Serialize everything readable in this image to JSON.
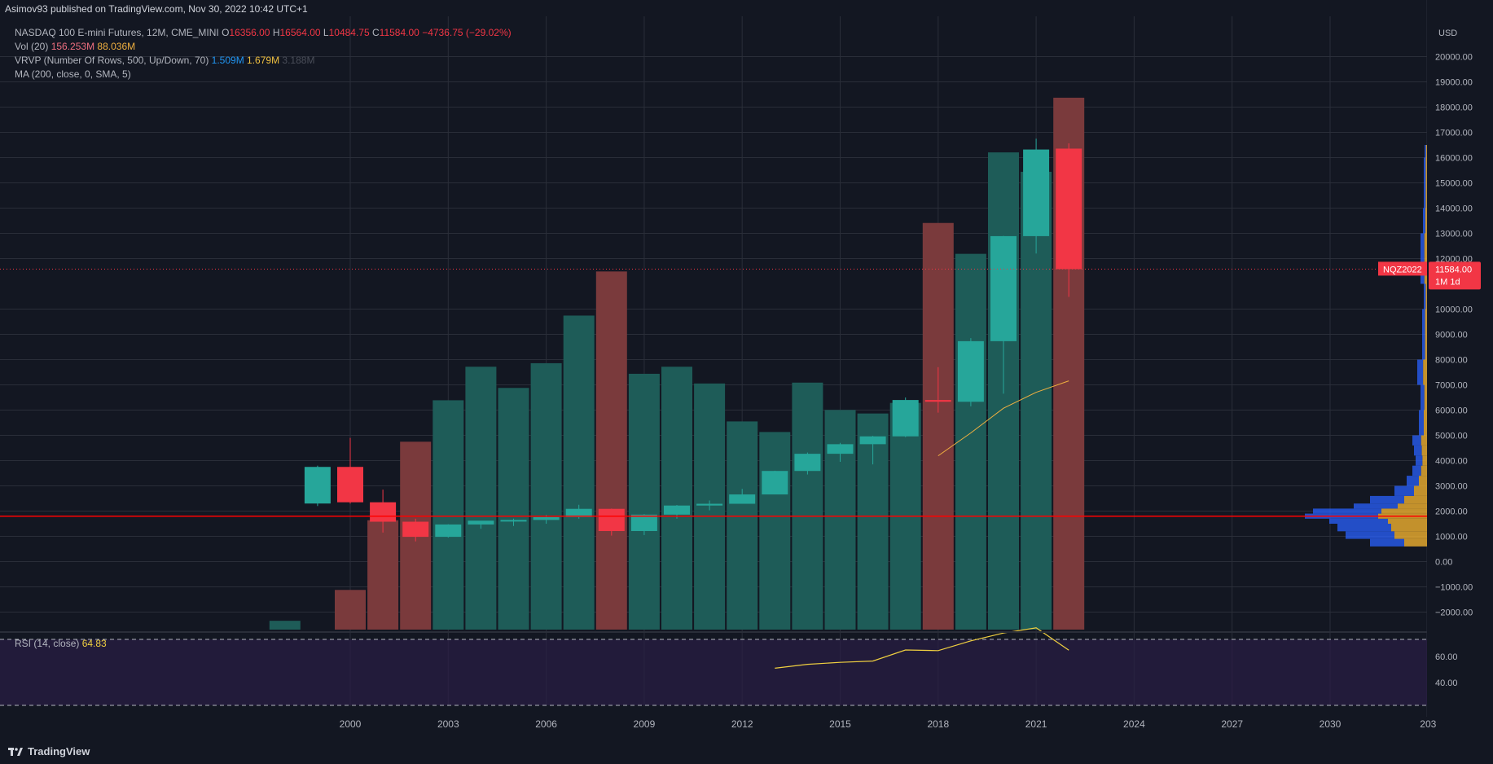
{
  "header": "Asimov93 published on TradingView.com, Nov 30, 2022 10:42 UTC+1",
  "legend": {
    "symbol": "NASDAQ 100 E-mini Futures, 12M, CME_MINI",
    "o_label": "O",
    "o": "16356.00",
    "h_label": "H",
    "h": "16564.00",
    "l_label": "L",
    "l": "10484.75",
    "c_label": "C",
    "c": "11584.00",
    "change": "−4736.75 (−29.02%)",
    "vol_label": "Vol (20)",
    "vol1": "156.253M",
    "vol2": "88.036M",
    "vrvp_label": "VRVP (Number Of Rows, 500, Up/Down, 70)",
    "vrvp1": "1.509M",
    "vrvp2": "1.679M",
    "vrvp3": "3.188M",
    "ma_label": "MA (200, close, 0, SMA, 5)",
    "rsi_label": "RSI (14, close)",
    "rsi": "64.83"
  },
  "footer": {
    "brand": "TradingView"
  },
  "colors": {
    "up": "#26a69a",
    "down": "#f23645",
    "bg": "#131722",
    "grid": "#2a2e39",
    "volUp": "#1e5c58",
    "volDown": "#7a3a3c",
    "rsi": "#f0d040",
    "ma": "#f0b040",
    "hline": "#ff0000",
    "rsiBand": "#2a1e44"
  },
  "chart_data": {
    "type": "candlestick",
    "currency": "USD",
    "y_ticks": [
      "20000.00",
      "19000.00",
      "18000.00",
      "17000.00",
      "16000.00",
      "15000.00",
      "14000.00",
      "13000.00",
      "12000.00",
      "10000.00",
      "9000.00",
      "8000.00",
      "7000.00",
      "6000.00",
      "5000.00",
      "4000.00",
      "3000.00",
      "2000.00",
      "1000.00",
      "0.00",
      "−1000.00",
      "−2000.00"
    ],
    "x_ticks": [
      "2000",
      "2003",
      "2006",
      "2009",
      "2012",
      "2015",
      "2018",
      "2021",
      "2024",
      "2027",
      "2030",
      "203"
    ],
    "price_label": {
      "symbol": "NQZ2022",
      "value": "11584.00",
      "countdown": "1M 1d"
    },
    "horizontal_line": 1800,
    "candles": [
      {
        "year": 1999,
        "o": 2300,
        "h": 3800,
        "l": 2200,
        "c": 3750
      },
      {
        "year": 2000,
        "o": 3750,
        "h": 4900,
        "l": 2300,
        "c": 2350
      },
      {
        "year": 2001,
        "o": 2350,
        "h": 2850,
        "l": 1150,
        "c": 1580
      },
      {
        "year": 2002,
        "o": 1580,
        "h": 1700,
        "l": 800,
        "c": 980
      },
      {
        "year": 2003,
        "o": 980,
        "h": 1480,
        "l": 950,
        "c": 1470
      },
      {
        "year": 2004,
        "o": 1470,
        "h": 1600,
        "l": 1300,
        "c": 1620
      },
      {
        "year": 2005,
        "o": 1620,
        "h": 1700,
        "l": 1410,
        "c": 1650
      },
      {
        "year": 2006,
        "o": 1650,
        "h": 1850,
        "l": 1500,
        "c": 1760
      },
      {
        "year": 2007,
        "o": 1760,
        "h": 2250,
        "l": 1700,
        "c": 2090
      },
      {
        "year": 2008,
        "o": 2090,
        "h": 2100,
        "l": 1030,
        "c": 1210
      },
      {
        "year": 2009,
        "o": 1210,
        "h": 1880,
        "l": 1050,
        "c": 1860
      },
      {
        "year": 2010,
        "o": 1860,
        "h": 2240,
        "l": 1700,
        "c": 2220
      },
      {
        "year": 2011,
        "o": 2220,
        "h": 2420,
        "l": 2030,
        "c": 2290
      },
      {
        "year": 2012,
        "o": 2290,
        "h": 2880,
        "l": 2290,
        "c": 2660
      },
      {
        "year": 2013,
        "o": 2660,
        "h": 3600,
        "l": 2660,
        "c": 3590
      },
      {
        "year": 2014,
        "o": 3590,
        "h": 4320,
        "l": 3450,
        "c": 4270
      },
      {
        "year": 2015,
        "o": 4270,
        "h": 4700,
        "l": 3950,
        "c": 4650
      },
      {
        "year": 2016,
        "o": 4650,
        "h": 4980,
        "l": 3850,
        "c": 4960
      },
      {
        "year": 2017,
        "o": 4960,
        "h": 6500,
        "l": 4930,
        "c": 6400
      },
      {
        "year": 2018,
        "o": 6400,
        "h": 7700,
        "l": 5900,
        "c": 6330
      },
      {
        "year": 2019,
        "o": 6330,
        "h": 8850,
        "l": 6150,
        "c": 8730
      },
      {
        "year": 2020,
        "o": 8730,
        "h": 12900,
        "l": 6650,
        "c": 12890
      },
      {
        "year": 2021,
        "o": 12890,
        "h": 16750,
        "l": 12200,
        "c": 16320
      },
      {
        "year": 2022,
        "o": 16356,
        "h": 16564,
        "l": 10484.75,
        "c": 11584
      }
    ],
    "volume": [
      {
        "year": 1998,
        "v": 100,
        "up": true
      },
      {
        "year": 2000,
        "v": 450,
        "up": false
      },
      {
        "year": 2001,
        "v": 1240,
        "up": false
      },
      {
        "year": 2002,
        "v": 2130,
        "up": false
      },
      {
        "year": 2003,
        "v": 2600,
        "up": true
      },
      {
        "year": 2004,
        "v": 2980,
        "up": true
      },
      {
        "year": 2005,
        "v": 2740,
        "up": true
      },
      {
        "year": 2006,
        "v": 3020,
        "up": true
      },
      {
        "year": 2007,
        "v": 3560,
        "up": true
      },
      {
        "year": 2008,
        "v": 4060,
        "up": false
      },
      {
        "year": 2009,
        "v": 2900,
        "up": true
      },
      {
        "year": 2010,
        "v": 2980,
        "up": true
      },
      {
        "year": 2011,
        "v": 2790,
        "up": true
      },
      {
        "year": 2012,
        "v": 2360,
        "up": true
      },
      {
        "year": 2013,
        "v": 2240,
        "up": true
      },
      {
        "year": 2014,
        "v": 2800,
        "up": true
      },
      {
        "year": 2015,
        "v": 2490,
        "up": true
      },
      {
        "year": 2016,
        "v": 2450,
        "up": true
      },
      {
        "year": 2017,
        "v": 2570,
        "up": true
      },
      {
        "year": 2018,
        "v": 4610,
        "up": false
      },
      {
        "year": 2019,
        "v": 4260,
        "up": true
      },
      {
        "year": 2020,
        "v": 5410,
        "up": true
      },
      {
        "year": 2021,
        "v": 5190,
        "up": true
      },
      {
        "year": 2022,
        "v": 6030,
        "up": false
      }
    ],
    "volume_ma": [
      {
        "year": 2018,
        "v": -160
      },
      {
        "year": 2019,
        "v": 100
      },
      {
        "year": 2020,
        "v": 380
      },
      {
        "year": 2021,
        "v": 560
      },
      {
        "year": 2022,
        "v": 690
      }
    ],
    "rsi_ticks": [
      "60.00",
      "40.00"
    ],
    "rsi_series": [
      {
        "year": 2013,
        "v": 51
      },
      {
        "year": 2014,
        "v": 54
      },
      {
        "year": 2015,
        "v": 55.5
      },
      {
        "year": 2016,
        "v": 56.5
      },
      {
        "year": 2017,
        "v": 65
      },
      {
        "year": 2018,
        "v": 64.5
      },
      {
        "year": 2019,
        "v": 72
      },
      {
        "year": 2020,
        "v": 78
      },
      {
        "year": 2021,
        "v": 82
      },
      {
        "year": 2022,
        "v": 64.83
      }
    ]
  }
}
